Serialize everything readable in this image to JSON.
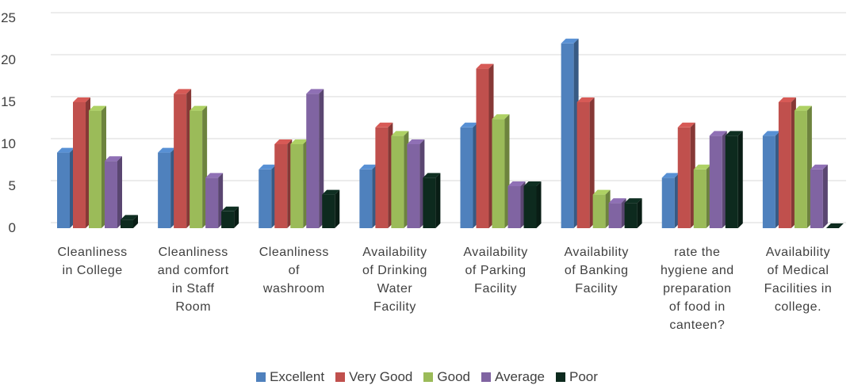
{
  "chart_data": {
    "type": "bar",
    "categories": [
      [
        "Cleanliness",
        "in College"
      ],
      [
        "Cleanliness",
        "and comfort",
        "in Staff",
        "Room"
      ],
      [
        "Cleanliness",
        "of",
        "washroom"
      ],
      [
        "Availability",
        "of Drinking",
        "Water",
        "Facility"
      ],
      [
        "Availability",
        "of Parking",
        "Facility"
      ],
      [
        "Availability",
        "of Banking",
        "Facility"
      ],
      [
        "rate the",
        "hygiene and",
        "preparation",
        "of food in",
        "canteen?"
      ],
      [
        "Availability",
        "of Medical",
        "Facilities in",
        "college."
      ]
    ],
    "series": [
      {
        "name": "Excellent",
        "color": "#4F81BD",
        "values": [
          9,
          9,
          7,
          7,
          12,
          22,
          6,
          11
        ]
      },
      {
        "name": "Very Good",
        "color": "#C0504D",
        "values": [
          15,
          16,
          10,
          12,
          19,
          15,
          12,
          15
        ]
      },
      {
        "name": "Good",
        "color": "#9BBB59",
        "values": [
          14,
          14,
          10,
          11,
          13,
          4,
          7,
          14
        ]
      },
      {
        "name": "Average",
        "color": "#8064A2",
        "values": [
          8,
          6,
          16,
          10,
          5,
          3,
          11,
          7
        ]
      },
      {
        "name": "Poor",
        "color": "#0D2A1E",
        "values": [
          1,
          2,
          4,
          6,
          5,
          3,
          11,
          0
        ]
      }
    ],
    "yticks": [
      "0",
      "5",
      "10",
      "15",
      "20",
      "25"
    ],
    "ylim": [
      0,
      25
    ],
    "grid": true,
    "legend_position": "bottom"
  }
}
